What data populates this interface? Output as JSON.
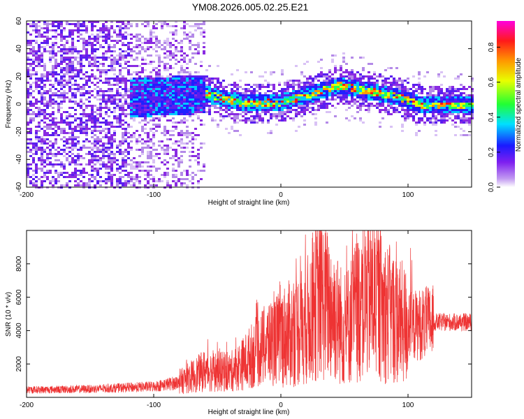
{
  "chart_data": [
    {
      "type": "heatmap",
      "title": "YM08.2026.005.02.25.E21",
      "xlabel": "Height of straight line (km)",
      "ylabel": "Frequency (Hz)",
      "xlim": [
        -200,
        150
      ],
      "ylim": [
        -60,
        60
      ],
      "x_ticks": [
        -200,
        -100,
        0,
        100
      ],
      "y_ticks": [
        -60,
        -40,
        -20,
        0,
        20,
        40,
        60
      ],
      "colorbar": {
        "label": "Normalized spectral amplitude",
        "range": [
          0.0,
          0.95
        ],
        "ticks": [
          0.0,
          0.2,
          0.4,
          0.6,
          0.8
        ]
      },
      "description_points": [
        {
          "x": -120,
          "peak_hz": 5
        },
        {
          "x": -60,
          "peak_hz": 8
        },
        {
          "x": -30,
          "peak_hz": 1
        },
        {
          "x": 0,
          "peak_hz": 2
        },
        {
          "x": 45,
          "peak_hz": 14
        },
        {
          "x": 90,
          "peak_hz": 6
        },
        {
          "x": 110,
          "peak_hz": 0
        },
        {
          "x": 150,
          "peak_hz": 0
        }
      ]
    },
    {
      "type": "line",
      "xlabel": "Height of straight line (km)",
      "ylabel": "SNR (10 * v/v)",
      "xlim": [
        -200,
        150
      ],
      "ylim": [
        0,
        10000
      ],
      "x_ticks": [
        -200,
        -100,
        0,
        100
      ],
      "y_ticks": [
        2000,
        4000,
        6000,
        8000
      ],
      "series": [
        {
          "name": "SNR",
          "color": "#ee3333",
          "x": [
            -200,
            -150,
            -100,
            -80,
            -60,
            -40,
            -30,
            -20,
            -10,
            0,
            10,
            20,
            30,
            40,
            50,
            60,
            70,
            80,
            90,
            100,
            110,
            120,
            130,
            150
          ],
          "y": [
            450,
            500,
            650,
            900,
            1600,
            1500,
            2000,
            2700,
            3200,
            3600,
            3900,
            4500,
            6000,
            5300,
            4000,
            5300,
            6200,
            5300,
            4700,
            4200,
            4400,
            4500,
            4500,
            4500
          ]
        }
      ]
    }
  ]
}
